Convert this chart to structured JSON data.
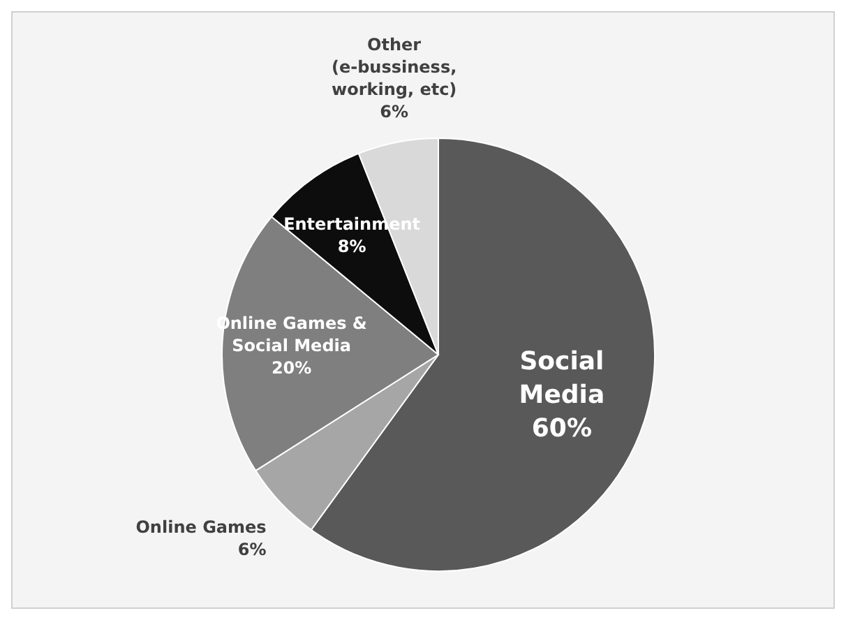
{
  "chart_data": {
    "type": "pie",
    "categories": [
      "Social Media",
      "Online Games",
      "Online Games & Social Media",
      "Entertainment",
      "Other (e-bussiness, working, etc)"
    ],
    "values": [
      60,
      6,
      20,
      8,
      6
    ],
    "value_labels": [
      "60%",
      "6%",
      "20%",
      "8%",
      "6%"
    ],
    "colors": [
      "#595959",
      "#a6a6a6",
      "#7f7f7f",
      "#0d0d0d",
      "#d9d9d9"
    ]
  }
}
